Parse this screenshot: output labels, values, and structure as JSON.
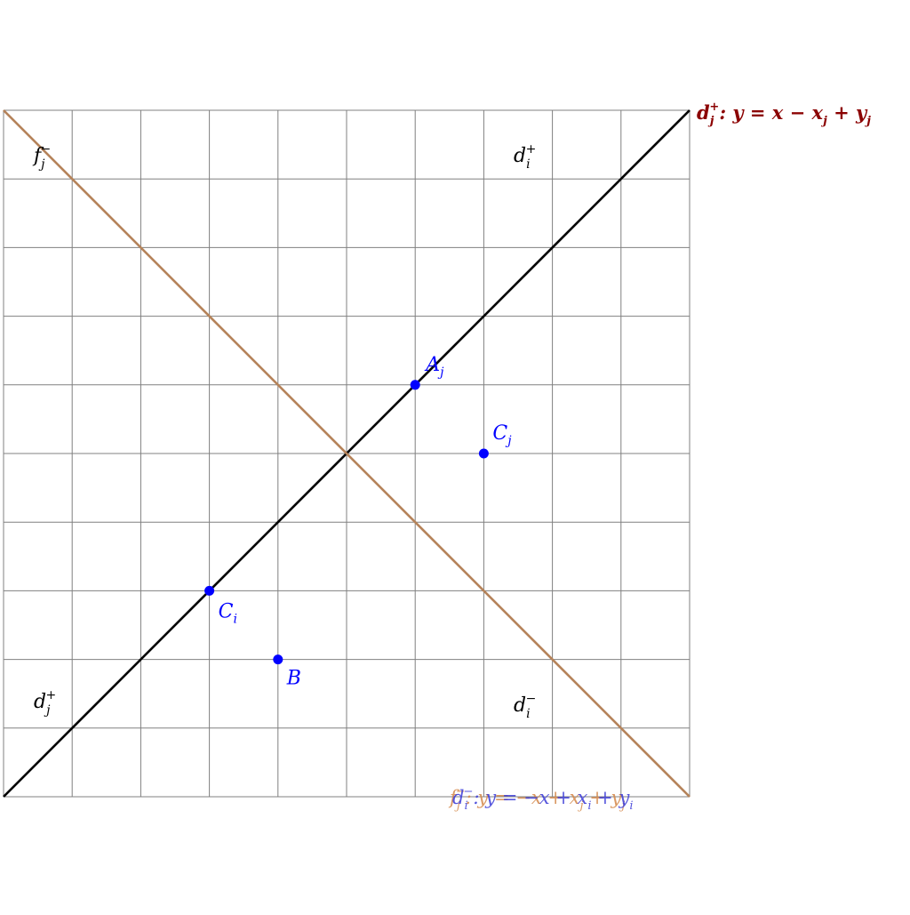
{
  "colors": {
    "grid": "#808080",
    "diagonal_up": "#000000",
    "diagonal_down": "#b5835a",
    "points": "#0000ff",
    "label_dark": "#000000",
    "label_red": "#8b0000",
    "label_orange": "#d4884a",
    "label_blue": "#3a3ad8"
  },
  "grid": {
    "cells": 10
  },
  "region_labels": {
    "top_left": {
      "base": "f",
      "sub": "j",
      "sup": "−"
    },
    "top_right": {
      "base": "d",
      "sub": "i",
      "sup": "+"
    },
    "bottom_left": {
      "base": "d",
      "sub": "j",
      "sup": "+"
    },
    "bottom_right": {
      "base": "d",
      "sub": "i",
      "sup": "−"
    }
  },
  "line_labels": {
    "rising": {
      "base": "d",
      "sub": "j",
      "sup": "+",
      "equation": ": y = x − x",
      "eq_sub1": "j",
      "eq_mid": " + y",
      "eq_sub2": "j"
    },
    "falling_a": {
      "base": "f",
      "sub": "j",
      "sup": "−",
      "equation": ": y = −x + x",
      "eq_sub1": "j",
      "eq_mid": " + y",
      "eq_sub2": "j"
    },
    "falling_b": {
      "base": "d",
      "sub": "i",
      "sup": "−",
      "equation": ": y = −x + x",
      "eq_sub1": "i",
      "eq_mid": " + y",
      "eq_sub2": "i"
    }
  },
  "points": [
    {
      "id": "A_j",
      "base": "A",
      "sub": "j",
      "x": 6,
      "y": 6
    },
    {
      "id": "C_j",
      "base": "C",
      "sub": "j",
      "x": 7,
      "y": 5
    },
    {
      "id": "C_i",
      "base": "C",
      "sub": "i",
      "x": 3,
      "y": 3
    },
    {
      "id": "B",
      "base": "B",
      "sub": "",
      "x": 4,
      "y": 2
    }
  ]
}
